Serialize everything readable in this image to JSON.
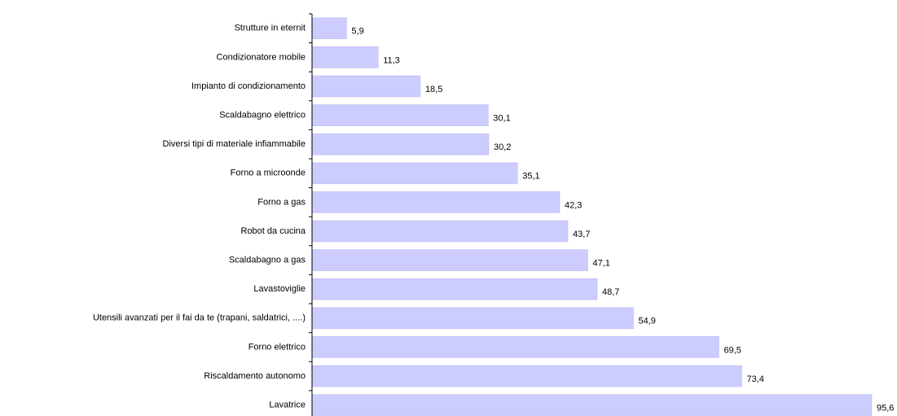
{
  "chart_data": {
    "type": "bar",
    "orientation": "horizontal",
    "color": "#ccccff",
    "categories": [
      "Strutture in eternit",
      "Condizionatore mobile",
      "Impianto di condizionamento",
      "Scaldabagno elettrico",
      "Diversi tipi di materiale infiammabile",
      "Forno a microonde",
      "Forno a gas",
      "Robot da cucina",
      "Scaldabagno a gas",
      "Lavastoviglie",
      "Utensili avanzati per il fai da te (trapani, saldatrici, ....)",
      "Forno elettrico",
      "Riscaldamento autonomo",
      "Lavatrice"
    ],
    "values": [
      5.9,
      11.3,
      18.5,
      30.1,
      30.2,
      35.1,
      42.3,
      43.7,
      47.1,
      48.7,
      54.9,
      69.5,
      73.4,
      95.6
    ],
    "value_labels": [
      "5,9",
      "11,3",
      "18,5",
      "30,1",
      "30,2",
      "35,1",
      "42,3",
      "43,7",
      "47,1",
      "48,7",
      "54,9",
      "69,5",
      "73,4",
      "95,6"
    ]
  }
}
